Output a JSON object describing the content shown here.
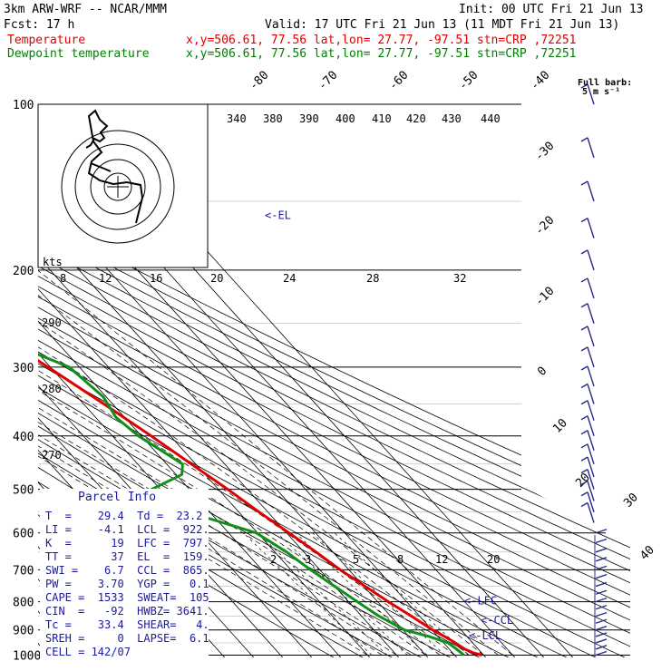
{
  "header": {
    "model": "3km ARW-WRF -- NCAR/MMM",
    "init": "Init: 00 UTC Fri 21 Jun 13",
    "fcst": "Fcst:   17 h",
    "valid": "Valid: 17 UTC Fri 21 Jun 13 (11 MDT Fri 21 Jun 13)",
    "temp_label": "Temperature",
    "dew_label": "Dewpoint temperature",
    "location": "x,y=506.61, 77.56   lat,lon= 27.77, -97.51   stn=CRP ,72251"
  },
  "colors": {
    "temperature": "#e00000",
    "dewpoint": "#10901a",
    "annotations": "#1a1aa0",
    "grid": "#000000"
  },
  "wind_barb_label": "Full barb:\n5 m s⁻¹",
  "chart_data": {
    "type": "skew-t log-p sounding",
    "y_axis": "pressure (hPa), log scale",
    "pressure_levels": [
      100,
      200,
      300,
      400,
      500,
      600,
      700,
      800,
      900,
      1000
    ],
    "isotherm_labels": [
      -80,
      -70,
      -60,
      -50,
      -40,
      -30,
      -20,
      -10,
      0,
      10,
      20,
      30,
      40
    ],
    "theta_labels": [
      340,
      380,
      390,
      400,
      410,
      420,
      430,
      440,
      290,
      280,
      270
    ],
    "mixing_ratio_labels": [
      "2",
      "3",
      "5",
      "8",
      "12",
      "20"
    ],
    "temperature": [
      [
        1000,
        29.4
      ],
      [
        990,
        27.0
      ],
      [
        975,
        25.3
      ],
      [
        950,
        24.0
      ],
      [
        925,
        22.3
      ],
      [
        900,
        20.2
      ],
      [
        850,
        17.2
      ],
      [
        800,
        13.7
      ],
      [
        750,
        10.5
      ],
      [
        700,
        7.0
      ],
      [
        650,
        4.2
      ],
      [
        600,
        0.8
      ],
      [
        550,
        -3.0
      ],
      [
        500,
        -6.8
      ],
      [
        450,
        -11.5
      ],
      [
        400,
        -16.6
      ],
      [
        350,
        -23.0
      ],
      [
        300,
        -30.8
      ],
      [
        250,
        -40.2
      ],
      [
        200,
        -51.0
      ],
      [
        175,
        -57.5
      ],
      [
        150,
        -64.5
      ],
      [
        125,
        -69.0
      ],
      [
        110,
        -67.0
      ],
      [
        100,
        -64.0
      ]
    ],
    "dewpoint": [
      [
        1000,
        23.2
      ],
      [
        975,
        22.5
      ],
      [
        950,
        21.5
      ],
      [
        925,
        17.0
      ],
      [
        900,
        10.5
      ],
      [
        850,
        6.0
      ],
      [
        800,
        3.0
      ],
      [
        750,
        0.0
      ],
      [
        700,
        -3.2
      ],
      [
        650,
        -6.0
      ],
      [
        600,
        -10.5
      ],
      [
        560,
        -24.0
      ],
      [
        500,
        -33.0
      ],
      [
        470,
        -18.0
      ],
      [
        450,
        -14.5
      ],
      [
        400,
        -21.0
      ],
      [
        370,
        -23.0
      ],
      [
        340,
        -21.0
      ],
      [
        300,
        -23.5
      ],
      [
        270,
        -37.0
      ],
      [
        250,
        -40.5
      ],
      [
        225,
        -46.0
      ],
      [
        200,
        -54.0
      ],
      [
        175,
        -61.5
      ],
      [
        150,
        -71.0
      ],
      [
        125,
        -77.0
      ],
      [
        100,
        -83.0
      ]
    ],
    "level_markers": [
      {
        "label": "<-EL",
        "p": 159
      },
      {
        "label": "<-LFC",
        "p": 797
      },
      {
        "label": "<-CCL",
        "p": 865
      },
      {
        "label": "<-LCL",
        "p": 922
      }
    ],
    "hodograph": {
      "ring_labels": [
        "kts"
      ],
      "speed_ticks": [
        "8",
        "12",
        "16",
        "20",
        "24",
        "28",
        "32"
      ]
    }
  },
  "parcel_info": {
    "title": "Parcel Info",
    "rows": [
      "T  =    29.4  Td =  23.2",
      "LI =    -4.1  LCL =  922.",
      "K  =      19  LFC =  797.",
      "TT =      37  EL  =  159.",
      "SWI =    6.7  CCL =  865.",
      "PW =    3.70  YGP =   0.1",
      "CAPE =  1533  SWEAT=  105",
      "CIN  =   -92  HWBZ= 3641.",
      "Tc =    33.4  SHEAR=   4.",
      "SREH =     0  LAPSE=  6.1",
      "CELL = 142/07"
    ]
  }
}
